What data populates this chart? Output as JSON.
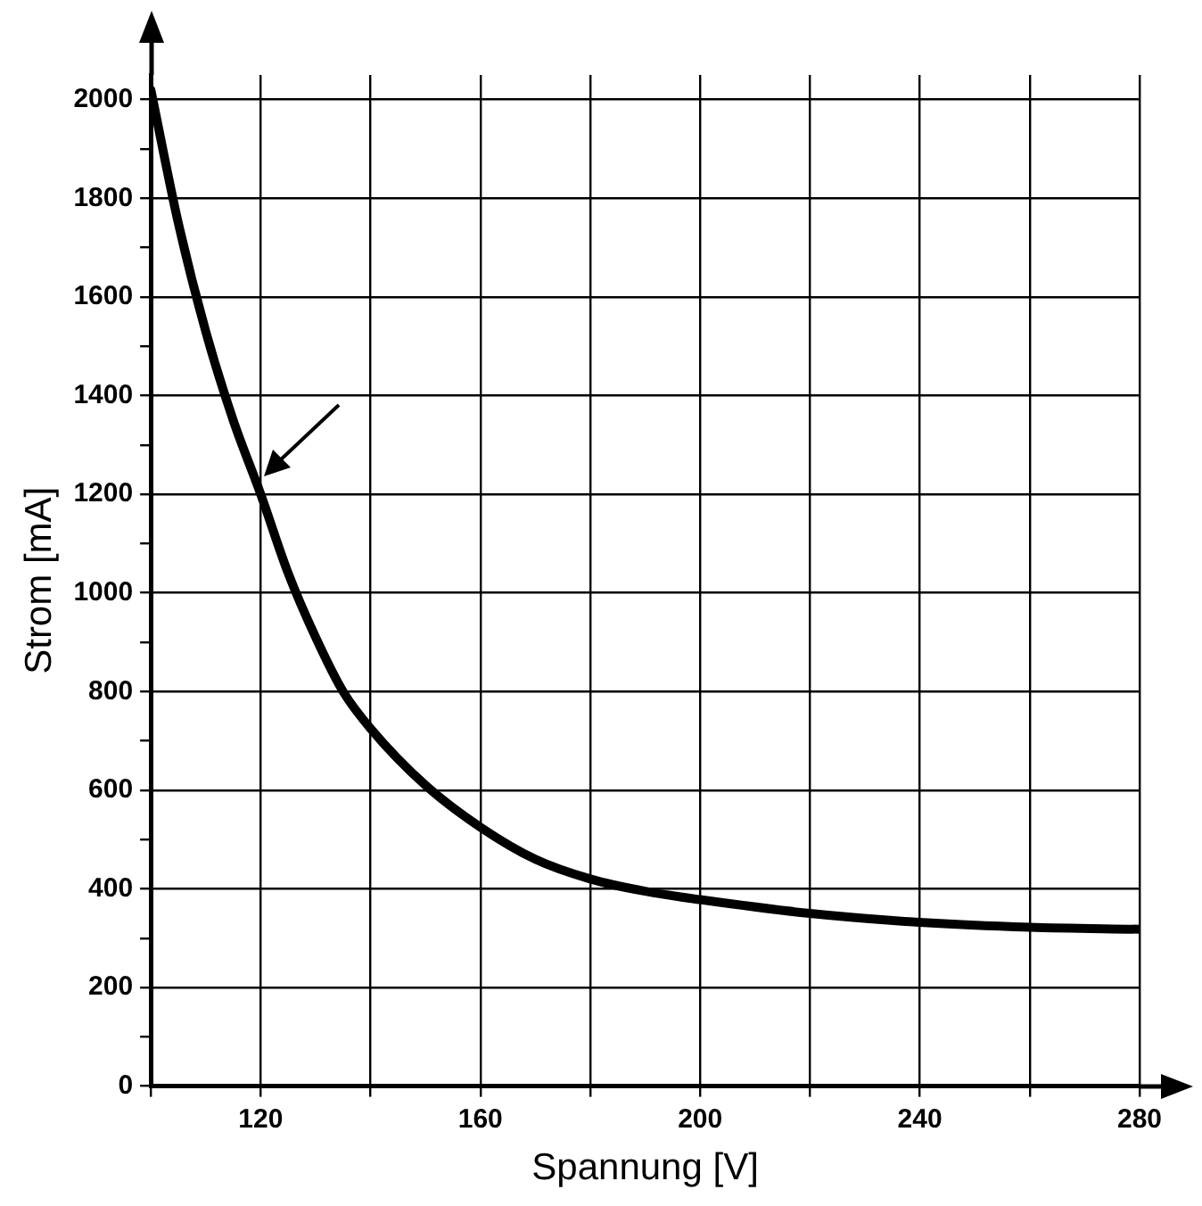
{
  "chart_data": {
    "type": "line",
    "xlabel": "Spannung [V]",
    "ylabel": "Strom [mA]",
    "x": [
      100,
      105,
      110,
      115,
      120,
      125,
      130,
      135,
      140,
      150,
      160,
      170,
      180,
      190,
      200,
      220,
      240,
      260,
      280
    ],
    "series": [
      {
        "color": "#000000",
        "values": [
          2020,
          1750,
          1530,
          1350,
          1200,
          1040,
          910,
          800,
          725,
          610,
          525,
          460,
          420,
          395,
          378,
          350,
          332,
          322,
          318
        ]
      }
    ],
    "xlim": [
      100,
      280
    ],
    "xticks": [
      {
        "value": 100,
        "label": null
      },
      120,
      {
        "value": 140,
        "label": null
      },
      160,
      {
        "value": 180,
        "label": null
      },
      200,
      {
        "value": 220,
        "label": null
      },
      240,
      {
        "value": 260,
        "label": null
      },
      280
    ],
    "ylim": [
      0,
      2050
    ],
    "yticks": [
      0,
      {
        "value": 100,
        "label": null
      },
      200,
      {
        "value": 300,
        "label": null
      },
      400,
      {
        "value": 500,
        "label": null
      },
      600,
      {
        "value": 700,
        "label": null
      },
      800,
      {
        "value": 900,
        "label": null
      },
      1000,
      {
        "value": 1100,
        "label": null
      },
      1200,
      {
        "value": 1300,
        "label": null
      },
      1400,
      {
        "value": 1500,
        "label": null
      },
      1600,
      {
        "value": 1700,
        "label": null
      },
      1800,
      {
        "value": 1900,
        "label": null
      },
      2000
    ],
    "grid": true,
    "legend": false,
    "marker": "none",
    "line_style": "solid"
  }
}
